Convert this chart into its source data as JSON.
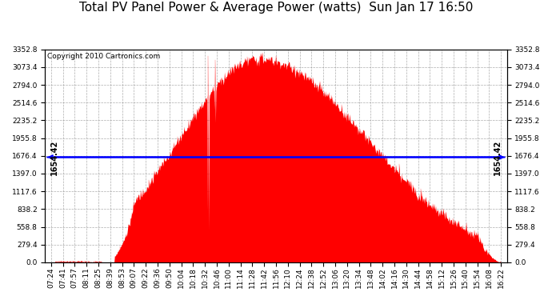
{
  "title": "Total PV Panel Power & Average Power (watts)  Sun Jan 17 16:50",
  "copyright": "Copyright 2010 Cartronics.com",
  "average_power": 1654.42,
  "y_max": 3352.8,
  "y_min": 0.0,
  "y_ticks": [
    0.0,
    279.4,
    558.8,
    838.2,
    1117.6,
    1397.0,
    1676.4,
    1955.8,
    2235.2,
    2514.6,
    2794.0,
    3073.4,
    3352.8
  ],
  "bar_color": "#FF0000",
  "avg_line_color": "#0000FF",
  "background_color": "#FFFFFF",
  "grid_color": "#999999",
  "title_fontsize": 11,
  "copyright_fontsize": 6.5,
  "tick_fontsize": 6.5,
  "avg_label_fontsize": 7,
  "x_labels": [
    "07:24",
    "07:41",
    "07:57",
    "08:11",
    "08:25",
    "08:39",
    "08:53",
    "09:07",
    "09:22",
    "09:36",
    "09:50",
    "10:04",
    "10:18",
    "10:32",
    "10:46",
    "11:00",
    "11:14",
    "11:28",
    "11:42",
    "11:56",
    "12:10",
    "12:24",
    "12:38",
    "12:52",
    "13:06",
    "13:20",
    "13:34",
    "13:48",
    "14:02",
    "14:16",
    "14:30",
    "14:44",
    "14:58",
    "15:12",
    "15:26",
    "15:40",
    "15:54",
    "16:08",
    "16:22"
  ]
}
